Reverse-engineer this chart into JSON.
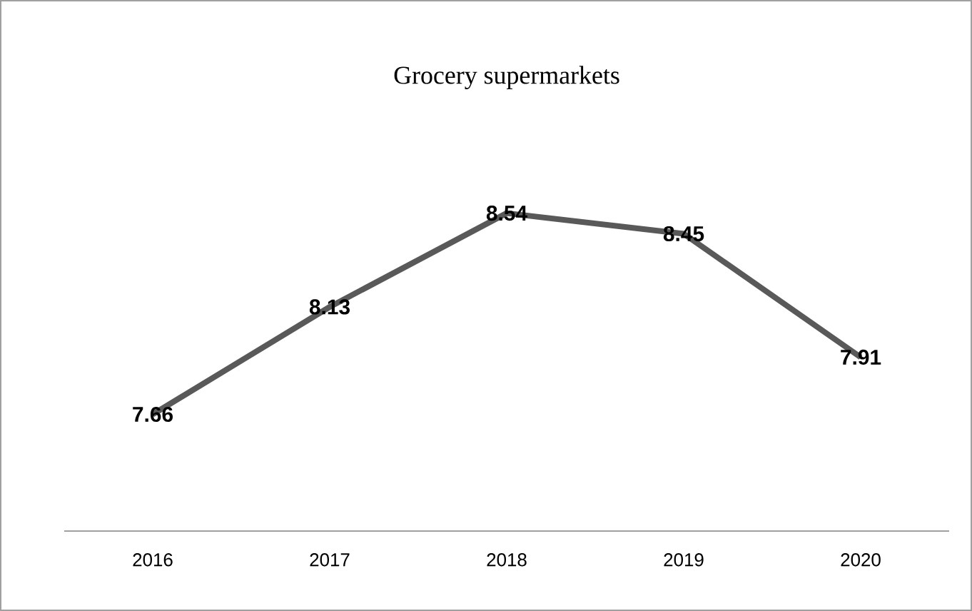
{
  "chart_data": {
    "type": "line",
    "title": "Grocery supermarkets",
    "categories": [
      "2016",
      "2017",
      "2018",
      "2019",
      "2020"
    ],
    "values": [
      7.66,
      8.13,
      8.54,
      8.45,
      7.91
    ],
    "color": "#595959",
    "data_labels": true,
    "marker": "none",
    "tick_labels": "x"
  }
}
